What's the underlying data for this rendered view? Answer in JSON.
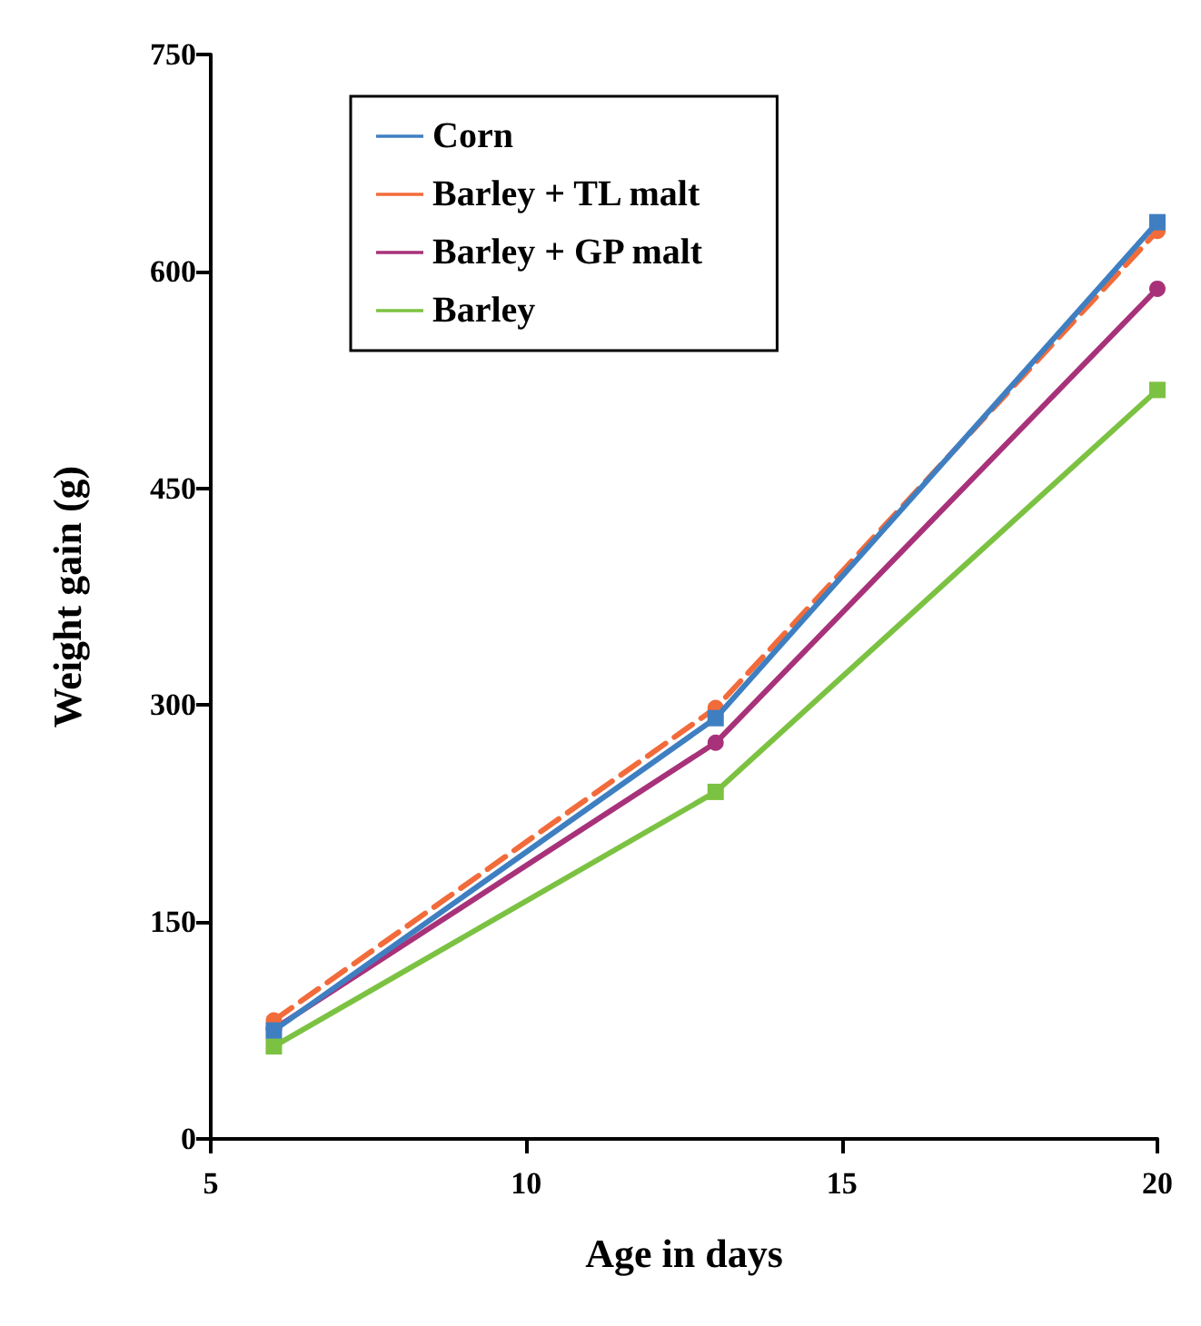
{
  "chart_data": {
    "type": "line",
    "xlabel": "Age in days",
    "ylabel": "Weight gain (g)",
    "x": [
      6,
      13,
      20
    ],
    "series": [
      {
        "name": "Corn",
        "color": "#3f7fc1",
        "values": [
          75,
          291,
          634
        ],
        "marker": "square",
        "line_style": "solid"
      },
      {
        "name": "Barley + TL malt",
        "color": "#f26b3a",
        "values": [
          82,
          298,
          628
        ],
        "marker": "circle",
        "line_style": "dashed"
      },
      {
        "name": "Barley + GP malt",
        "color": "#a8327a",
        "values": [
          76,
          274,
          588
        ],
        "marker": "circle",
        "line_style": "solid"
      },
      {
        "name": "Barley",
        "color": "#7cc242",
        "values": [
          64,
          240,
          518
        ],
        "marker": "square",
        "line_style": "solid"
      }
    ],
    "xlim": [
      5,
      20
    ],
    "xticks": [
      5,
      10,
      15,
      20
    ],
    "ylim": [
      0,
      750
    ],
    "yticks": [
      0,
      150,
      300,
      450,
      600,
      750
    ],
    "grid": false,
    "legend": "top left"
  }
}
